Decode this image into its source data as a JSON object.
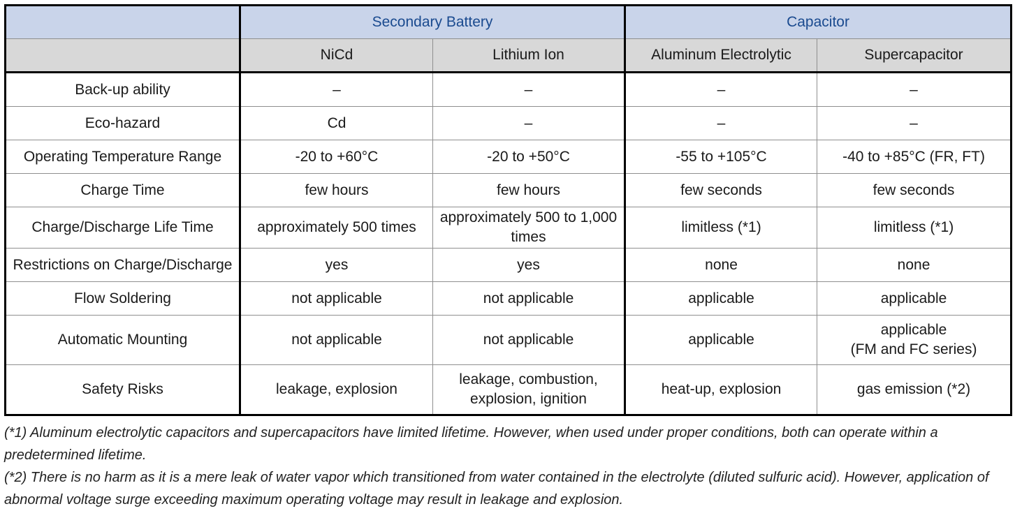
{
  "groups": {
    "battery": "Secondary Battery",
    "capacitor": "Capacitor"
  },
  "columns": [
    "NiCd",
    "Lithium Ion",
    "Aluminum Electrolytic",
    "Supercapacitor"
  ],
  "rows": [
    {
      "label": "Back-up ability",
      "cells": [
        "–",
        "–",
        "–",
        "–"
      ]
    },
    {
      "label": "Eco-hazard",
      "cells": [
        "Cd",
        "–",
        "–",
        "–"
      ]
    },
    {
      "label": "Operating Temperature Range",
      "cells": [
        "-20 to +60°C",
        "-20 to +50°C",
        "-55 to +105°C",
        "-40 to +85°C (FR, FT)"
      ]
    },
    {
      "label": "Charge Time",
      "cells": [
        "few hours",
        "few hours",
        "few seconds",
        "few seconds"
      ]
    },
    {
      "label": "Charge/Discharge Life Time",
      "cells": [
        "approximately 500 times",
        "approximately 500 to 1,000 times",
        "limitless (*1)",
        "limitless (*1)"
      ]
    },
    {
      "label": "Restrictions on Charge/Discharge",
      "cells": [
        "yes",
        "yes",
        "none",
        "none"
      ]
    },
    {
      "label": "Flow Soldering",
      "cells": [
        "not applicable",
        "not applicable",
        "applicable",
        "applicable"
      ]
    },
    {
      "label": "Automatic Mounting",
      "cells": [
        "not applicable",
        "not applicable",
        "applicable",
        "applicable"
      ],
      "extra": "(FM and FC series)"
    },
    {
      "label": "Safety Risks",
      "cells": [
        "leakage, explosion",
        "leakage, combustion, explosion, ignition",
        "heat-up, explosion",
        "gas emission (*2)"
      ]
    }
  ],
  "notes": [
    "(*1) Aluminum electrolytic capacitors and supercapacitors have limited lifetime. However, when used under proper conditions, both can operate within a predetermined lifetime.",
    "(*2) There is no harm as it is a mere leak of water vapor which transitioned from water contained in the electrolyte (diluted sulfuric acid). However, application of abnormal voltage surge exceeding maximum operating voltage may result in leakage and explosion."
  ]
}
